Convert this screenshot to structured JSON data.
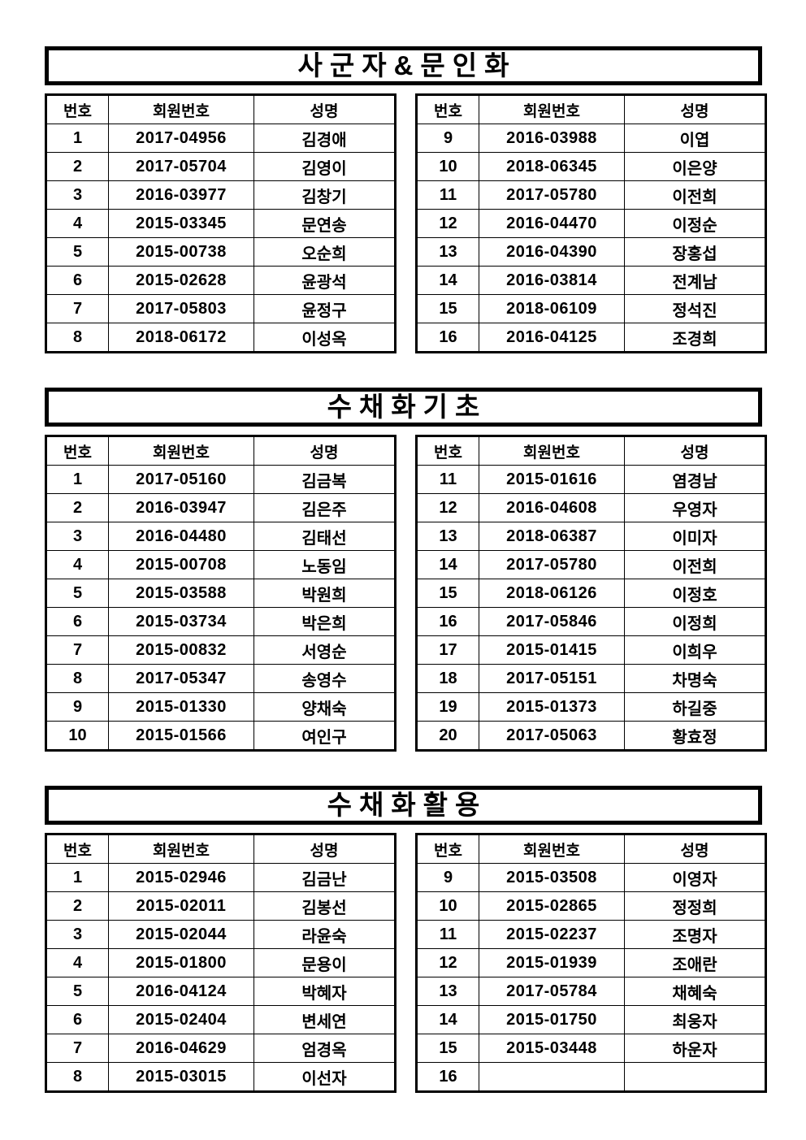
{
  "document": {
    "column_headers": {
      "no": "번호",
      "member_no": "회원번호",
      "name": "성명"
    }
  },
  "sections": [
    {
      "title": "사군자&문인화",
      "left_rows": [
        {
          "no": "1",
          "member_no": "2017-04956",
          "name": "김경애"
        },
        {
          "no": "2",
          "member_no": "2017-05704",
          "name": "김영이"
        },
        {
          "no": "3",
          "member_no": "2016-03977",
          "name": "김창기"
        },
        {
          "no": "4",
          "member_no": "2015-03345",
          "name": "문연송"
        },
        {
          "no": "5",
          "member_no": "2015-00738",
          "name": "오순희"
        },
        {
          "no": "6",
          "member_no": "2015-02628",
          "name": "윤광석"
        },
        {
          "no": "7",
          "member_no": "2017-05803",
          "name": "윤정구"
        },
        {
          "no": "8",
          "member_no": "2018-06172",
          "name": "이성옥"
        }
      ],
      "right_rows": [
        {
          "no": "9",
          "member_no": "2016-03988",
          "name": "이엽"
        },
        {
          "no": "10",
          "member_no": "2018-06345",
          "name": "이은양"
        },
        {
          "no": "11",
          "member_no": "2017-05780",
          "name": "이전희"
        },
        {
          "no": "12",
          "member_no": "2016-04470",
          "name": "이정순"
        },
        {
          "no": "13",
          "member_no": "2016-04390",
          "name": "장홍섭"
        },
        {
          "no": "14",
          "member_no": "2016-03814",
          "name": "전계남"
        },
        {
          "no": "15",
          "member_no": "2018-06109",
          "name": "정석진"
        },
        {
          "no": "16",
          "member_no": "2016-04125",
          "name": "조경희"
        }
      ]
    },
    {
      "title": "수채화기초",
      "left_rows": [
        {
          "no": "1",
          "member_no": "2017-05160",
          "name": "김금복"
        },
        {
          "no": "2",
          "member_no": "2016-03947",
          "name": "김은주"
        },
        {
          "no": "3",
          "member_no": "2016-04480",
          "name": "김태선"
        },
        {
          "no": "4",
          "member_no": "2015-00708",
          "name": "노동임"
        },
        {
          "no": "5",
          "member_no": "2015-03588",
          "name": "박원희"
        },
        {
          "no": "6",
          "member_no": "2015-03734",
          "name": "박은희"
        },
        {
          "no": "7",
          "member_no": "2015-00832",
          "name": "서영순"
        },
        {
          "no": "8",
          "member_no": "2017-05347",
          "name": "송영수"
        },
        {
          "no": "9",
          "member_no": "2015-01330",
          "name": "양채숙"
        },
        {
          "no": "10",
          "member_no": "2015-01566",
          "name": "여인구"
        }
      ],
      "right_rows": [
        {
          "no": "11",
          "member_no": "2015-01616",
          "name": "염경남"
        },
        {
          "no": "12",
          "member_no": "2016-04608",
          "name": "우영자"
        },
        {
          "no": "13",
          "member_no": "2018-06387",
          "name": "이미자"
        },
        {
          "no": "14",
          "member_no": "2017-05780",
          "name": "이전희"
        },
        {
          "no": "15",
          "member_no": "2018-06126",
          "name": "이정호"
        },
        {
          "no": "16",
          "member_no": "2017-05846",
          "name": "이정희"
        },
        {
          "no": "17",
          "member_no": "2015-01415",
          "name": "이희우"
        },
        {
          "no": "18",
          "member_no": "2017-05151",
          "name": "차명숙"
        },
        {
          "no": "19",
          "member_no": "2015-01373",
          "name": "하길중"
        },
        {
          "no": "20",
          "member_no": "2017-05063",
          "name": "황효정"
        }
      ]
    },
    {
      "title": "수채화활용",
      "left_rows": [
        {
          "no": "1",
          "member_no": "2015-02946",
          "name": "김금난"
        },
        {
          "no": "2",
          "member_no": "2015-02011",
          "name": "김봉선"
        },
        {
          "no": "3",
          "member_no": "2015-02044",
          "name": "라윤숙"
        },
        {
          "no": "4",
          "member_no": "2015-01800",
          "name": "문용이"
        },
        {
          "no": "5",
          "member_no": "2016-04124",
          "name": "박혜자"
        },
        {
          "no": "6",
          "member_no": "2015-02404",
          "name": "변세연"
        },
        {
          "no": "7",
          "member_no": "2016-04629",
          "name": "엄경옥"
        },
        {
          "no": "8",
          "member_no": "2015-03015",
          "name": "이선자"
        }
      ],
      "right_rows": [
        {
          "no": "9",
          "member_no": "2015-03508",
          "name": "이영자"
        },
        {
          "no": "10",
          "member_no": "2015-02865",
          "name": "정정희"
        },
        {
          "no": "11",
          "member_no": "2015-02237",
          "name": "조명자"
        },
        {
          "no": "12",
          "member_no": "2015-01939",
          "name": "조애란"
        },
        {
          "no": "13",
          "member_no": "2017-05784",
          "name": "채혜숙"
        },
        {
          "no": "14",
          "member_no": "2015-01750",
          "name": "최웅자"
        },
        {
          "no": "15",
          "member_no": "2015-03448",
          "name": "하운자"
        },
        {
          "no": "16",
          "member_no": "",
          "name": ""
        }
      ]
    }
  ]
}
